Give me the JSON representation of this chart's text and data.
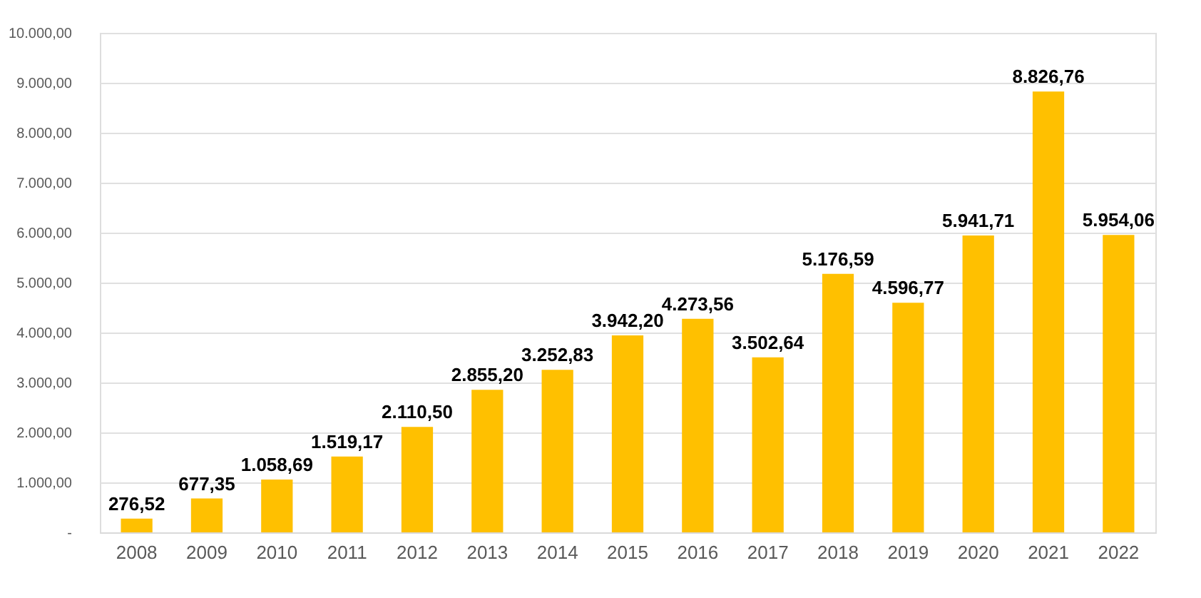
{
  "chart_data": {
    "type": "bar",
    "categories": [
      "2008",
      "2009",
      "2010",
      "2011",
      "2012",
      "2013",
      "2014",
      "2015",
      "2016",
      "2017",
      "2018",
      "2019",
      "2020",
      "2021",
      "2022"
    ],
    "values": [
      276.52,
      677.35,
      1058.69,
      1519.17,
      2110.5,
      2855.2,
      3252.83,
      3942.2,
      4273.56,
      3502.64,
      5176.59,
      4596.77,
      5941.71,
      8826.76,
      5954.06
    ],
    "value_labels": [
      "276,52",
      "677,35",
      "1.058,69",
      "1.519,17",
      "2.110,50",
      "2.855,20",
      "3.252,83",
      "3.942,20",
      "4.273,56",
      "3.502,64",
      "5.176,59",
      "4.596,77",
      "5.941,71",
      "8.826,76",
      "5.954,06"
    ],
    "color": "#ffc000",
    "ylim": [
      0,
      10000
    ],
    "yticks": [
      {
        "value": 0,
        "label": "-"
      },
      {
        "value": 1000,
        "label": "1.000,00"
      },
      {
        "value": 2000,
        "label": "2.000,00"
      },
      {
        "value": 3000,
        "label": "3.000,00"
      },
      {
        "value": 4000,
        "label": "4.000,00"
      },
      {
        "value": 5000,
        "label": "5.000,00"
      },
      {
        "value": 6000,
        "label": "6.000,00"
      },
      {
        "value": 7000,
        "label": "7.000,00"
      },
      {
        "value": 8000,
        "label": "8.000,00"
      },
      {
        "value": 9000,
        "label": "9.000,00"
      },
      {
        "value": 10000,
        "label": "10.000,00"
      }
    ],
    "grid": "y"
  }
}
